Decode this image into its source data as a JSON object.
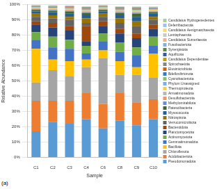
{
  "chart_data": {
    "type": "bar",
    "stacked": true,
    "caption": "(a)",
    "x_label": "Sample",
    "y_label": "Relative Abundance",
    "categories": [
      "C1",
      "C2",
      "C3",
      "C4",
      "C6",
      "C8",
      "C9",
      "C10"
    ],
    "ylim": [
      0,
      100
    ],
    "yticks": [
      {
        "value": 0,
        "label": "0%"
      },
      {
        "value": 10,
        "label": "10%"
      },
      {
        "value": 20,
        "label": "20%"
      },
      {
        "value": 30,
        "label": "30%"
      },
      {
        "value": 40,
        "label": "40%"
      },
      {
        "value": 50,
        "label": "50%"
      },
      {
        "value": 60,
        "label": "60%"
      },
      {
        "value": 70,
        "label": "70%"
      },
      {
        "value": 80,
        "label": "80%"
      },
      {
        "value": 90,
        "label": "90%"
      },
      {
        "value": 100,
        "label": "100%"
      }
    ],
    "grid": true,
    "legend": "right",
    "series": [
      {
        "name": "Pseudomonadota",
        "color": "#5B9BD5",
        "values": [
          17,
          23,
          22,
          25,
          19,
          24,
          21,
          25
        ]
      },
      {
        "name": "Acidobacteriota",
        "color": "#ED7D31",
        "values": [
          20,
          14,
          15,
          17,
          16,
          18,
          15,
          13
        ]
      },
      {
        "name": "Chloroflexota",
        "color": "#A5A5A5",
        "values": [
          12,
          20,
          16,
          17,
          30,
          12,
          18,
          14
        ]
      },
      {
        "name": "Bacillota",
        "color": "#FFC000",
        "values": [
          22,
          7,
          10,
          5,
          5,
          9,
          5,
          16
        ]
      },
      {
        "name": "Gemmatimonadota",
        "color": "#4472C4",
        "values": [
          6,
          8,
          8,
          4,
          6,
          6,
          8,
          5
        ]
      },
      {
        "name": "Actinomycetota",
        "color": "#70AD47",
        "values": [
          5,
          7,
          6,
          5,
          5,
          6,
          5,
          6
        ]
      },
      {
        "name": "Planctomycetota",
        "color": "#264478",
        "values": [
          5,
          6,
          6,
          3,
          5,
          6,
          6,
          5
        ]
      },
      {
        "name": "Bacteroidota",
        "color": "#9E480E",
        "values": [
          2,
          3,
          3,
          10,
          3,
          3,
          3,
          3
        ]
      },
      {
        "name": "Verrucomicrobiota",
        "color": "#636363",
        "values": [
          3,
          3,
          4,
          2,
          3,
          4,
          5,
          3
        ]
      },
      {
        "name": "Nitrospirota",
        "color": "#997300",
        "values": [
          2,
          2,
          2,
          3,
          2,
          3,
          3,
          2
        ]
      },
      {
        "name": "Myxococcota",
        "color": "#255E91",
        "values": [
          1.5,
          2,
          2,
          2,
          1.5,
          2,
          3,
          2
        ]
      },
      {
        "name": "Patescibacteria",
        "color": "#43682B",
        "values": [
          1,
          1,
          1.5,
          1.5,
          1,
          1.5,
          2,
          1
        ]
      },
      {
        "name": "Methylomirabilota",
        "color": "#698ED0",
        "values": [
          0.5,
          0.5,
          0.5,
          0.5,
          0.4,
          0.5,
          0.6,
          0.5
        ]
      },
      {
        "name": "Desulfobacterota",
        "color": "#F1975A",
        "values": [
          0.4,
          0.4,
          0.5,
          0.5,
          0.4,
          0.5,
          0.5,
          0.4
        ]
      },
      {
        "name": "Armatimonadota",
        "color": "#B7B7B7",
        "values": [
          0.3,
          0.3,
          0.4,
          0.4,
          0.3,
          0.4,
          0.4,
          0.3
        ]
      },
      {
        "name": "Thermoproteota",
        "color": "#FFCD33",
        "values": [
          0.3,
          0.3,
          0.3,
          0.4,
          0.3,
          0.4,
          0.4,
          0.3
        ]
      },
      {
        "name": "Phylum Unassigned",
        "color": "#7CAFDD",
        "values": [
          0.2,
          0.3,
          0.3,
          0.3,
          0.2,
          0.3,
          0.4,
          0.3
        ]
      },
      {
        "name": "Cyanobacteriota",
        "color": "#8CC168",
        "values": [
          0.2,
          0.2,
          0.3,
          0.3,
          0.2,
          0.3,
          0.3,
          0.3
        ]
      },
      {
        "name": "Bdellovibrionota",
        "color": "#327DC2",
        "values": [
          0.2,
          0.2,
          0.2,
          0.3,
          0.2,
          0.3,
          0.3,
          0.2
        ]
      },
      {
        "name": "Elusimicrobiota",
        "color": "#D26012",
        "values": [
          0.2,
          0.2,
          0.2,
          0.3,
          0.2,
          0.3,
          0.3,
          0.2
        ]
      },
      {
        "name": "Spirochaetota",
        "color": "#848484",
        "values": [
          0.2,
          0.2,
          0.2,
          0.2,
          0.2,
          0.2,
          0.3,
          0.2
        ]
      },
      {
        "name": "Candidatus Dependentiae",
        "color": "#CC9A00",
        "values": [
          0.1,
          0.2,
          0.2,
          0.2,
          0.1,
          0.2,
          0.2,
          0.2
        ]
      },
      {
        "name": "Aquificota",
        "color": "#335AA1",
        "values": [
          0.1,
          0.1,
          0.2,
          0.2,
          0.1,
          0.2,
          0.2,
          0.1
        ]
      },
      {
        "name": "Synergistota",
        "color": "#5A8A39",
        "values": [
          0.1,
          0.1,
          0.1,
          0.2,
          0.1,
          0.2,
          0.2,
          0.1
        ]
      },
      {
        "name": "Fusobacteriota",
        "color": "#8FAADC",
        "values": [
          0.1,
          0.1,
          0.1,
          0.1,
          0.1,
          0.1,
          0.2,
          0.1
        ]
      },
      {
        "name": "Candidatus Sumerlaeota",
        "color": "#F4B183",
        "values": [
          0.1,
          0.1,
          0.1,
          0.1,
          0.1,
          0.1,
          0.1,
          0.1
        ]
      },
      {
        "name": "Lentisphaerota",
        "color": "#C9C9C9",
        "values": [
          0.1,
          0.1,
          0.1,
          0.1,
          0.1,
          0.1,
          0.1,
          0.1
        ]
      },
      {
        "name": "Candidatus Aenigmarchaeota",
        "color": "#FFD966",
        "values": [
          0.1,
          0.1,
          0.1,
          0.1,
          0.1,
          0.1,
          0.1,
          0.1
        ]
      },
      {
        "name": "Deferribacterota",
        "color": "#9DC3E6",
        "values": [
          0.1,
          0.1,
          0.1,
          0.1,
          0.1,
          0.1,
          0.1,
          0.1
        ]
      },
      {
        "name": "Candidatus Hydrogenedentes",
        "color": "#A9D18E",
        "values": [
          0.1,
          0.1,
          0.1,
          0.1,
          0.1,
          0.1,
          0.1,
          0.1
        ]
      }
    ]
  }
}
